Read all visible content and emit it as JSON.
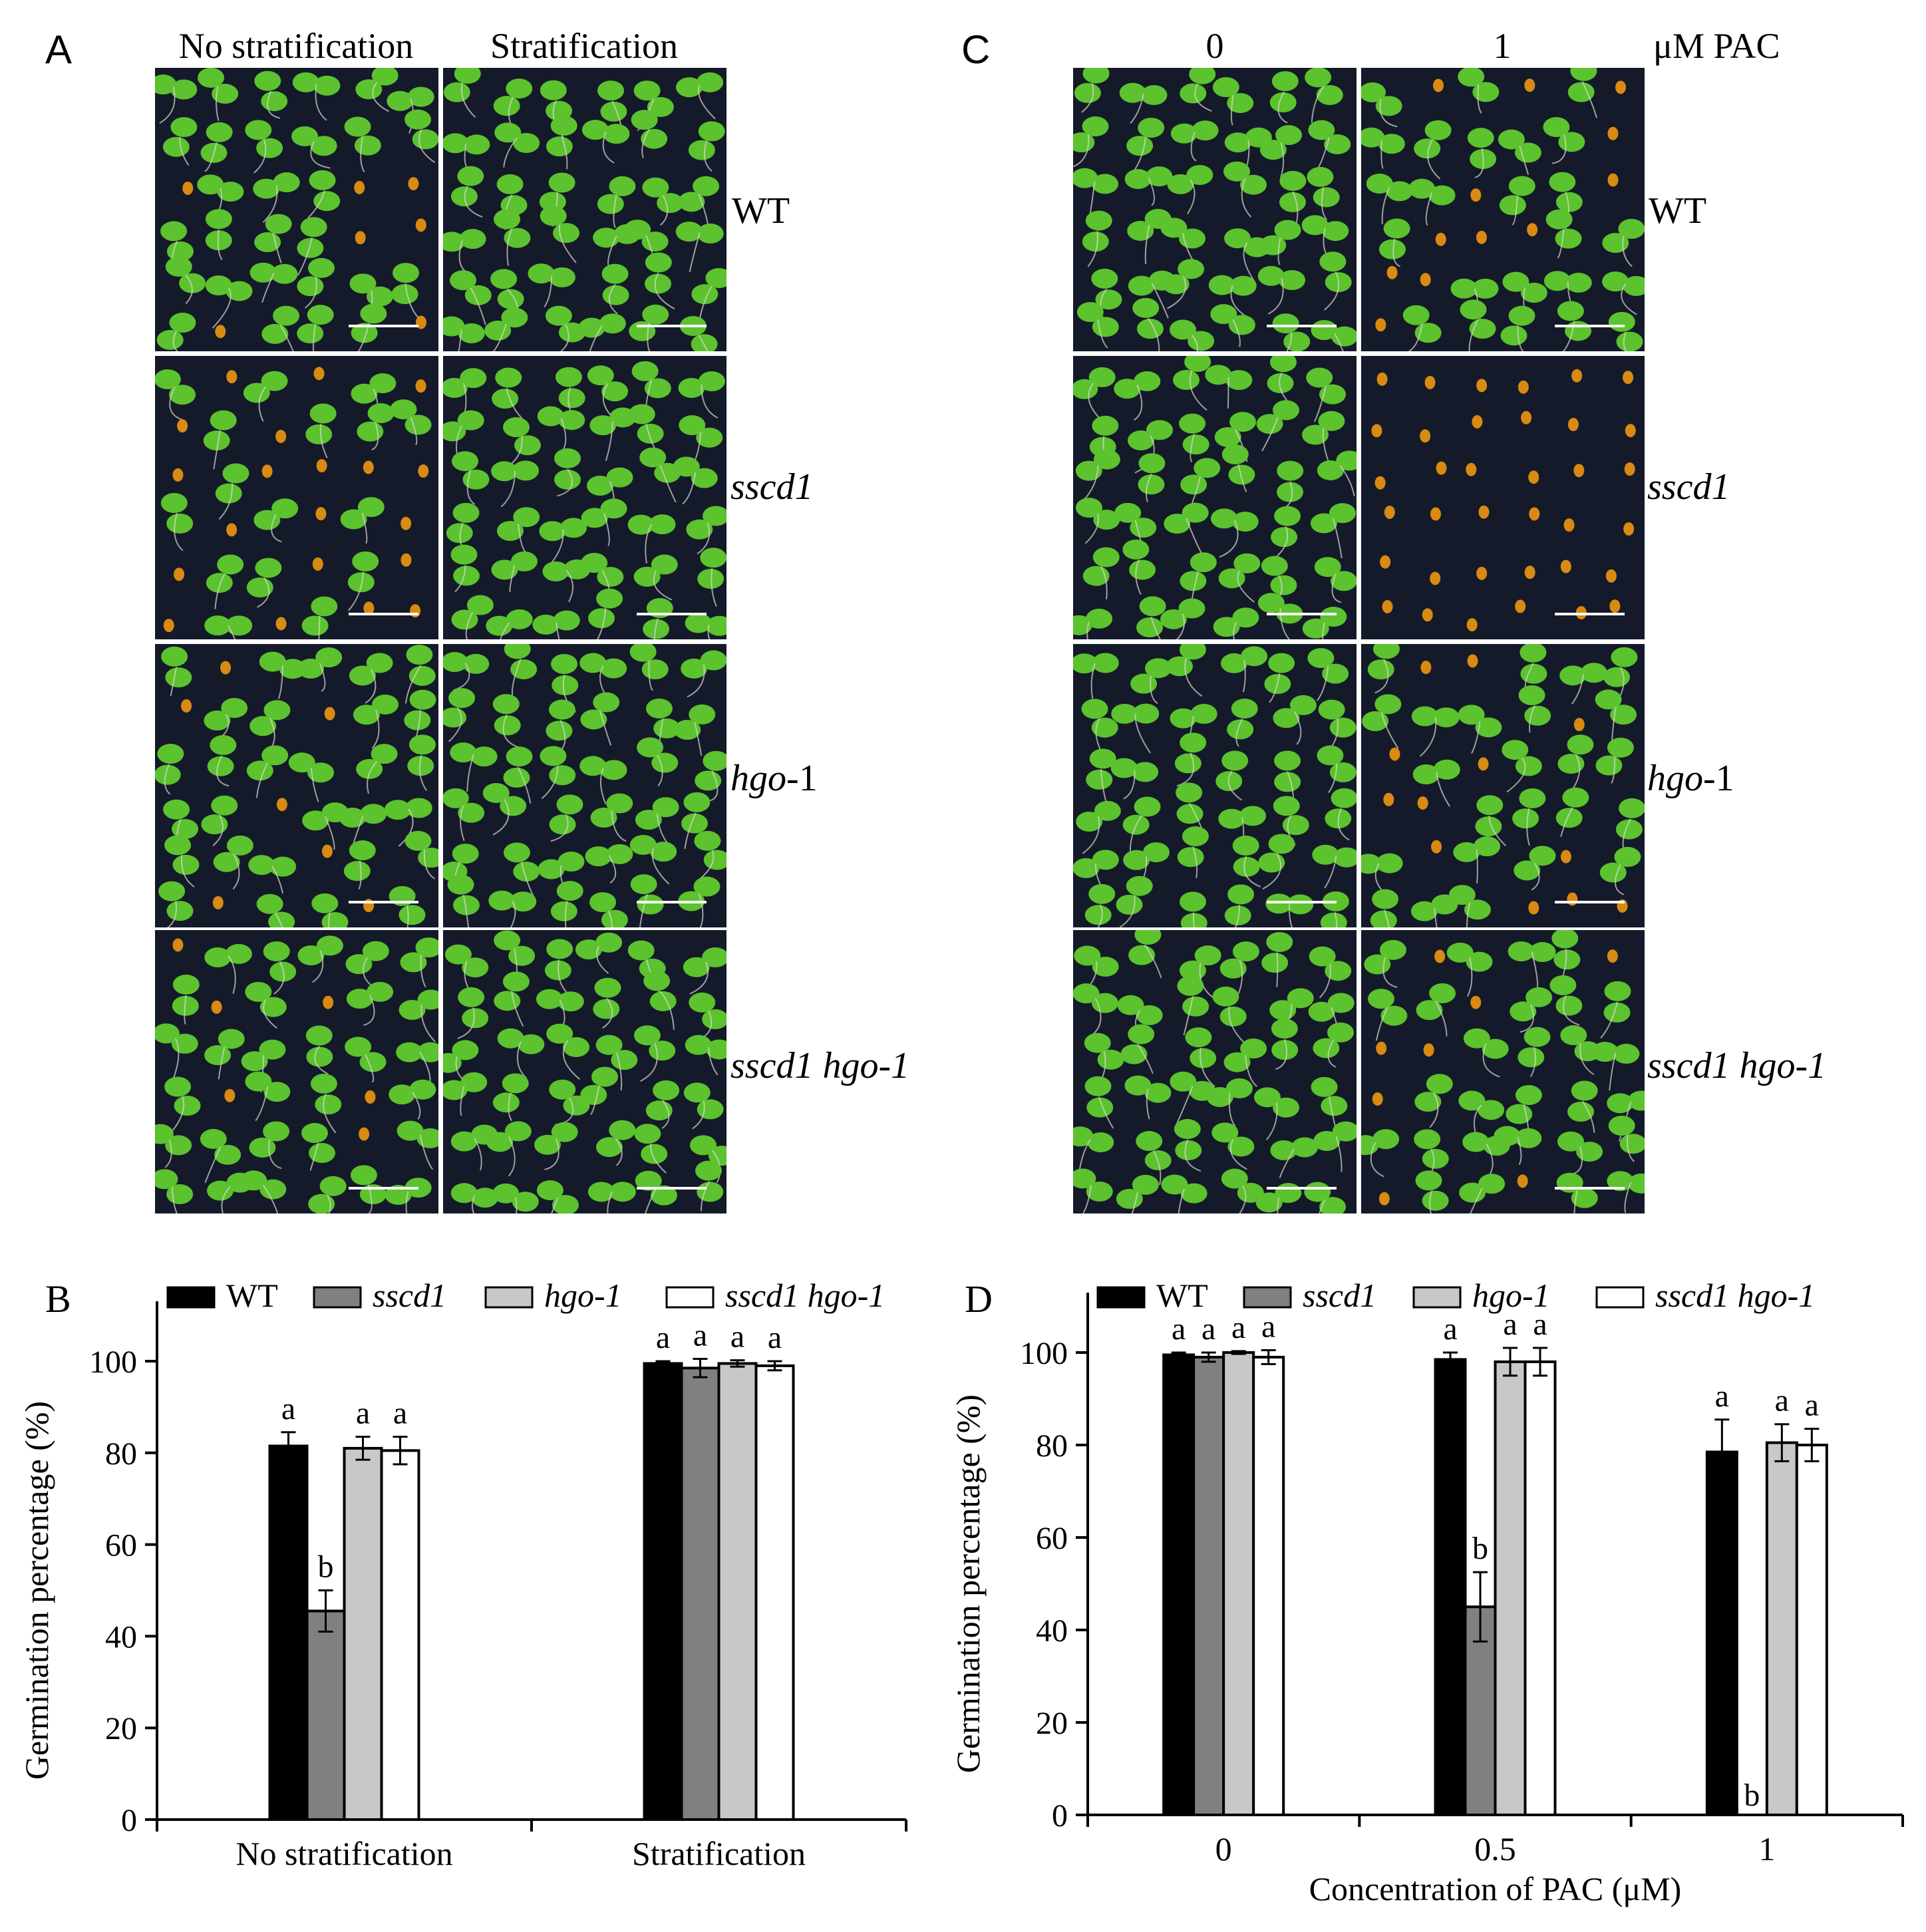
{
  "panels": {
    "A": {
      "letter": "A",
      "col_headers": [
        "No stratification",
        "Stratification"
      ],
      "row_labels": [
        "WT",
        "sscd1",
        "hgo-1",
        "sscd1 hgo-1"
      ],
      "tiles": [
        {
          "row": "WT",
          "col": "No stratification",
          "germinated": 0.8
        },
        {
          "row": "WT",
          "col": "Stratification",
          "germinated": 1.0
        },
        {
          "row": "sscd1",
          "col": "No stratification",
          "germinated": 0.45
        },
        {
          "row": "sscd1",
          "col": "Stratification",
          "germinated": 1.0
        },
        {
          "row": "hgo-1",
          "col": "No stratification",
          "germinated": 0.8
        },
        {
          "row": "hgo-1",
          "col": "Stratification",
          "germinated": 1.0
        },
        {
          "row": "sscd1 hgo-1",
          "col": "No stratification",
          "germinated": 0.8
        },
        {
          "row": "sscd1 hgo-1",
          "col": "Stratification",
          "germinated": 1.0
        }
      ]
    },
    "C": {
      "letter": "C",
      "col_headers": [
        "0",
        "1"
      ],
      "unit_header": "μM PAC",
      "row_labels": [
        "WT",
        "sscd1",
        "hgo-1",
        "sscd1 hgo-1"
      ],
      "tiles": [
        {
          "row": "WT",
          "col": "0",
          "germinated": 1.0
        },
        {
          "row": "WT",
          "col": "1",
          "germinated": 0.8
        },
        {
          "row": "sscd1",
          "col": "0",
          "germinated": 1.0
        },
        {
          "row": "sscd1",
          "col": "1",
          "germinated": 0.0
        },
        {
          "row": "hgo-1",
          "col": "0",
          "germinated": 1.0
        },
        {
          "row": "hgo-1",
          "col": "1",
          "germinated": 0.8
        },
        {
          "row": "sscd1 hgo-1",
          "col": "0",
          "germinated": 1.0
        },
        {
          "row": "sscd1 hgo-1",
          "col": "1",
          "germinated": 0.8
        }
      ]
    }
  },
  "colors": {
    "WT": "#000000",
    "sscd1": "#808080",
    "hgo-1": "#c8c8c8",
    "sscd1 hgo-1": "#ffffff",
    "plate": "#141a2a",
    "cotyledon": "#5cc22e",
    "seed": "#d98a12"
  },
  "chart_data": [
    {
      "letter": "B",
      "type": "bar",
      "title": "",
      "xlabel": "",
      "ylabel": "Germination percentage (%)",
      "ylim": [
        0,
        100
      ],
      "yticks": [
        0,
        20,
        40,
        60,
        80,
        100
      ],
      "legend": "top",
      "legend_entries": [
        "WT",
        "sscd1",
        "hgo-1",
        "sscd1 hgo-1"
      ],
      "categories": [
        "No stratification",
        "Stratification"
      ],
      "series": [
        {
          "name": "WT",
          "values": [
            81.5,
            99.5
          ],
          "errors": [
            3,
            0.5
          ],
          "labels": [
            "a",
            "a"
          ]
        },
        {
          "name": "sscd1",
          "values": [
            45.5,
            98.5
          ],
          "errors": [
            4.5,
            2
          ],
          "labels": [
            "b",
            "a"
          ]
        },
        {
          "name": "hgo-1",
          "values": [
            81,
            99.5
          ],
          "errors": [
            2.5,
            0.7
          ],
          "labels": [
            "a",
            "a"
          ]
        },
        {
          "name": "sscd1 hgo-1",
          "values": [
            80.5,
            99
          ],
          "errors": [
            3,
            1
          ],
          "labels": [
            "a",
            "a"
          ]
        }
      ]
    },
    {
      "letter": "D",
      "type": "bar",
      "title": "",
      "xlabel": "Concentration of PAC (μM)",
      "ylabel": "Germination percentage (%)",
      "ylim": [
        0,
        100
      ],
      "yticks": [
        0,
        20,
        40,
        60,
        80,
        100
      ],
      "legend": "top",
      "legend_entries": [
        "WT",
        "sscd1",
        "hgo-1",
        "sscd1 hgo-1"
      ],
      "categories": [
        "0",
        "0.5",
        "1"
      ],
      "series": [
        {
          "name": "WT",
          "values": [
            99.5,
            98.5,
            78.5
          ],
          "errors": [
            0.5,
            1.5,
            7
          ],
          "labels": [
            "a",
            "a",
            "a"
          ]
        },
        {
          "name": "sscd1",
          "values": [
            99,
            45,
            0
          ],
          "errors": [
            1,
            7.5,
            0
          ],
          "labels": [
            "a",
            "b",
            "b"
          ]
        },
        {
          "name": "hgo-1",
          "values": [
            100,
            98,
            80.5
          ],
          "errors": [
            0.3,
            3,
            4
          ],
          "labels": [
            "a",
            "a",
            "a"
          ]
        },
        {
          "name": "sscd1 hgo-1",
          "values": [
            99,
            98,
            80
          ],
          "errors": [
            1.5,
            3,
            3.5
          ],
          "labels": [
            "a",
            "a",
            "a"
          ]
        }
      ]
    }
  ]
}
